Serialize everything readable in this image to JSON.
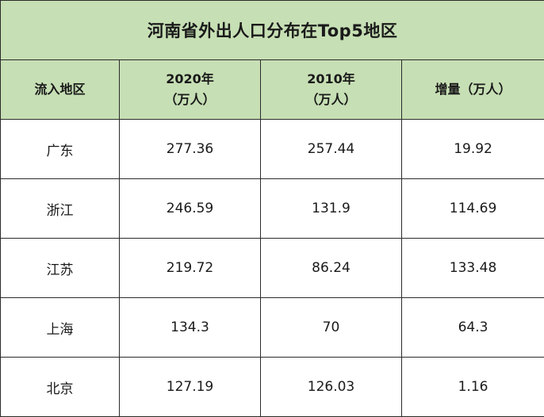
{
  "table": {
    "title": "河南省外出人口分布在Top5地区",
    "headers": [
      {
        "line1": "流入地区",
        "line2": ""
      },
      {
        "line1": "2020年",
        "line2": "（万人）"
      },
      {
        "line1": "2010年",
        "line2": "（万人）"
      },
      {
        "line1": "增量（万人）",
        "line2": ""
      }
    ],
    "rows": [
      {
        "region": "广东",
        "y2020": "277.36",
        "y2010": "257.44",
        "increase": "19.92"
      },
      {
        "region": "浙江",
        "y2020": "246.59",
        "y2010": "131.9",
        "increase": "114.69"
      },
      {
        "region": "江苏",
        "y2020": "219.72",
        "y2010": "86.24",
        "increase": "133.48"
      },
      {
        "region": "上海",
        "y2020": "134.3",
        "y2010": "70",
        "increase": "64.3"
      },
      {
        "region": "北京",
        "y2020": "127.19",
        "y2010": "126.03",
        "increase": "1.16"
      }
    ]
  },
  "colors": {
    "header_bg": "#c6dfb4",
    "border": "#2b2b2b",
    "text": "#1a1a1a"
  }
}
